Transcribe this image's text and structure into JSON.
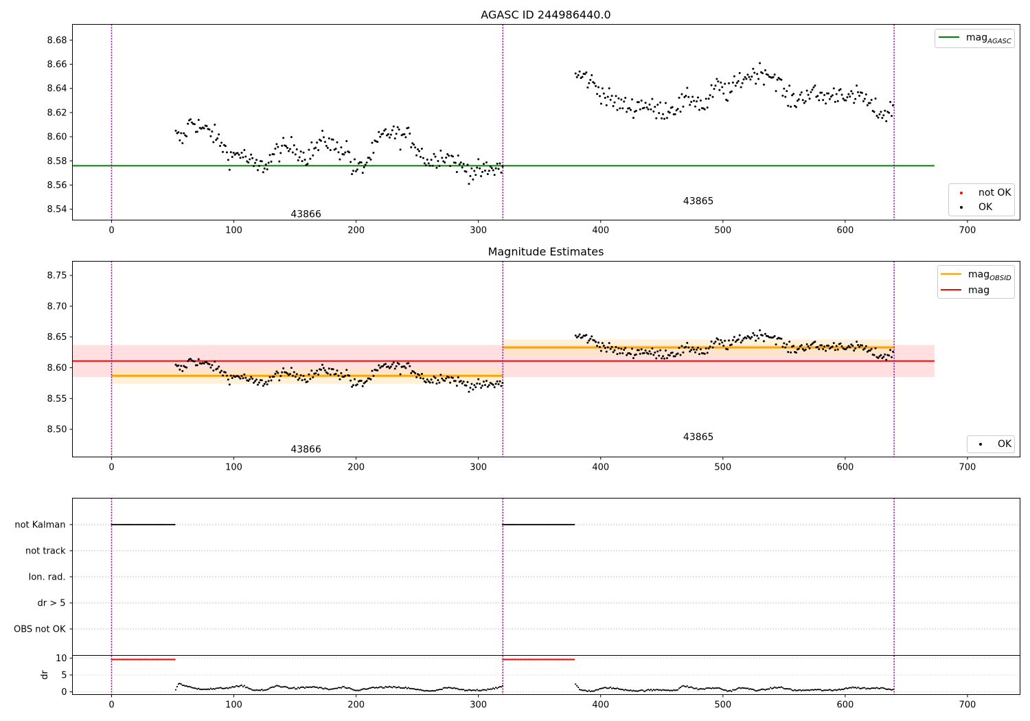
{
  "colors": {
    "ok": "#000000",
    "not_ok": "#ff0000",
    "agasc": "#008000",
    "obsid": "#ffa500",
    "mag": "#ff0000",
    "mag_band": "#ffd9d9",
    "obsid_band": "#ffe8bf",
    "divider": "#800080",
    "flag_grid": "#b0b0b0"
  },
  "chart_data": [
    {
      "id": "agasc_panel",
      "type": "scatter",
      "title": "AGASC ID 244986440.0",
      "xlim": [
        -32,
        743
      ],
      "ylim": [
        8.531,
        8.693
      ],
      "x_ticks": [
        0,
        100,
        200,
        300,
        400,
        500,
        600,
        700
      ],
      "y_ticks": [
        "8.54",
        "8.56",
        "8.58",
        "8.60",
        "8.62",
        "8.64",
        "8.66",
        "8.68"
      ],
      "agasc_mag": 8.576,
      "agasc_line_x": [
        -32,
        673
      ],
      "obs_boundaries": [
        0,
        320,
        640
      ],
      "obs_labels": [
        {
          "text": "43866",
          "x": 159,
          "y": 8.536
        },
        {
          "text": "43865",
          "x": 480,
          "y": 8.547
        }
      ],
      "legend_upper": [
        {
          "label": "mag",
          "sub": "AGASC"
        }
      ],
      "legend_lower": [
        "not OK",
        "OK"
      ],
      "segments": [
        {
          "x_start": 52,
          "x_end": 320,
          "keys": [
            [
              52,
              8.601
            ],
            [
              58,
              8.597
            ],
            [
              65,
              8.614
            ],
            [
              75,
              8.606
            ],
            [
              82,
              8.603
            ],
            [
              90,
              8.594
            ],
            [
              97,
              8.583
            ],
            [
              105,
              8.587
            ],
            [
              113,
              8.579
            ],
            [
              120,
              8.574
            ],
            [
              127,
              8.578
            ],
            [
              135,
              8.588
            ],
            [
              143,
              8.59
            ],
            [
              150,
              8.592
            ],
            [
              158,
              8.583
            ],
            [
              166,
              8.59
            ],
            [
              175,
              8.598
            ],
            [
              185,
              8.589
            ],
            [
              193,
              8.591
            ],
            [
              197,
              8.573
            ],
            [
              205,
              8.574
            ],
            [
              213,
              8.586
            ],
            [
              220,
              8.599
            ],
            [
              228,
              8.604
            ],
            [
              236,
              8.6
            ],
            [
              244,
              8.6
            ],
            [
              252,
              8.588
            ],
            [
              260,
              8.578
            ],
            [
              268,
              8.585
            ],
            [
              276,
              8.583
            ],
            [
              284,
              8.577
            ],
            [
              292,
              8.572
            ],
            [
              300,
              8.571
            ],
            [
              310,
              8.572
            ],
            [
              320,
              8.576
            ]
          ]
        },
        {
          "x_start": 379,
          "x_end": 640,
          "keys": [
            [
              379,
              8.65
            ],
            [
              387,
              8.65
            ],
            [
              395,
              8.643
            ],
            [
              405,
              8.632
            ],
            [
              415,
              8.627
            ],
            [
              425,
              8.624
            ],
            [
              435,
              8.628
            ],
            [
              445,
              8.621
            ],
            [
              455,
              8.623
            ],
            [
              465,
              8.626
            ],
            [
              475,
              8.633
            ],
            [
              485,
              8.624
            ],
            [
              495,
              8.642
            ],
            [
              505,
              8.636
            ],
            [
              515,
              8.648
            ],
            [
              525,
              8.652
            ],
            [
              535,
              8.654
            ],
            [
              545,
              8.647
            ],
            [
              552,
              8.632
            ],
            [
              560,
              8.63
            ],
            [
              570,
              8.637
            ],
            [
              580,
              8.633
            ],
            [
              590,
              8.634
            ],
            [
              598,
              8.638
            ],
            [
              605,
              8.63
            ],
            [
              613,
              8.636
            ],
            [
              620,
              8.625
            ],
            [
              628,
              8.62
            ],
            [
              635,
              8.619
            ],
            [
              640,
              8.626
            ]
          ]
        }
      ]
    },
    {
      "id": "estimates_panel",
      "type": "scatter",
      "title": "Magnitude Estimates",
      "xlim": [
        -32,
        743
      ],
      "ylim": [
        8.455,
        8.773
      ],
      "x_ticks": [
        0,
        100,
        200,
        300,
        400,
        500,
        600,
        700
      ],
      "y_ticks": [
        "8.50",
        "8.55",
        "8.60",
        "8.65",
        "8.70",
        "8.75"
      ],
      "mag": 8.611,
      "mag_band": [
        8.585,
        8.637
      ],
      "mag_x": [
        -32,
        673
      ],
      "obsid_mags": [
        {
          "x": [
            0,
            320
          ],
          "value": 8.587,
          "band": [
            8.574,
            8.6
          ]
        },
        {
          "x": [
            320,
            640
          ],
          "value": 8.633,
          "band": [
            8.62,
            8.646
          ]
        }
      ],
      "obs_boundaries": [
        0,
        320,
        640
      ],
      "obs_labels": [
        {
          "text": "43866",
          "x": 159,
          "y": 8.468
        },
        {
          "text": "43865",
          "x": 480,
          "y": 8.488
        }
      ],
      "legend_upper": [
        {
          "label": "mag",
          "sub": "OBSID"
        },
        {
          "label": "mag",
          "sub": ""
        }
      ],
      "legend_lower": [
        "OK"
      ]
    },
    {
      "id": "flags_panel",
      "type": "scatter",
      "xlim": [
        -32,
        743
      ],
      "categories": [
        "not Kalman",
        "not track",
        "Ion. rad.",
        "dr > 5",
        "OBS not OK"
      ],
      "flag_ranges": [
        {
          "category": "not Kalman",
          "x": [
            [
              0,
              52
            ],
            [
              320,
              379
            ]
          ]
        }
      ],
      "obs_boundaries": [
        0,
        320,
        640
      ]
    },
    {
      "id": "dr_panel",
      "type": "scatter",
      "ylabel": "dr",
      "xlim": [
        -32,
        743
      ],
      "ylim": [
        -0.8,
        10.8
      ],
      "x_ticks": [
        0,
        100,
        200,
        300,
        400,
        500,
        600,
        700
      ],
      "y_ticks": [
        "0",
        "5",
        "10"
      ],
      "dr_cap": 9.6,
      "red_ranges": [
        [
          0,
          52
        ],
        [
          320,
          379
        ]
      ],
      "obs_boundaries": [
        0,
        320,
        640
      ],
      "dr_keys": [
        [
          52,
          0.3
        ],
        [
          55,
          2.6
        ],
        [
          60,
          1.8
        ],
        [
          68,
          1.0
        ],
        [
          80,
          0.8
        ],
        [
          95,
          1.2
        ],
        [
          108,
          1.8
        ],
        [
          115,
          0.6
        ],
        [
          125,
          0.4
        ],
        [
          135,
          1.8
        ],
        [
          150,
          1.0
        ],
        [
          165,
          1.5
        ],
        [
          178,
          0.7
        ],
        [
          190,
          1.4
        ],
        [
          200,
          0.3
        ],
        [
          210,
          1.1
        ],
        [
          225,
          1.4
        ],
        [
          240,
          1.2
        ],
        [
          255,
          0.4
        ],
        [
          265,
          0.3
        ],
        [
          275,
          1.3
        ],
        [
          290,
          0.4
        ],
        [
          305,
          0.6
        ],
        [
          320,
          1.5
        ],
        [
          379,
          2.6
        ],
        [
          383,
          0.6
        ],
        [
          393,
          0.2
        ],
        [
          405,
          1.3
        ],
        [
          418,
          0.7
        ],
        [
          430,
          0.3
        ],
        [
          447,
          0.6
        ],
        [
          462,
          0.5
        ],
        [
          468,
          1.8
        ],
        [
          480,
          0.8
        ],
        [
          495,
          1.2
        ],
        [
          505,
          0.2
        ],
        [
          515,
          1.2
        ],
        [
          530,
          0.4
        ],
        [
          545,
          1.4
        ],
        [
          560,
          0.4
        ],
        [
          575,
          0.6
        ],
        [
          590,
          0.4
        ],
        [
          605,
          1.3
        ],
        [
          620,
          1.0
        ],
        [
          630,
          1.2
        ],
        [
          640,
          0.6
        ]
      ]
    }
  ]
}
